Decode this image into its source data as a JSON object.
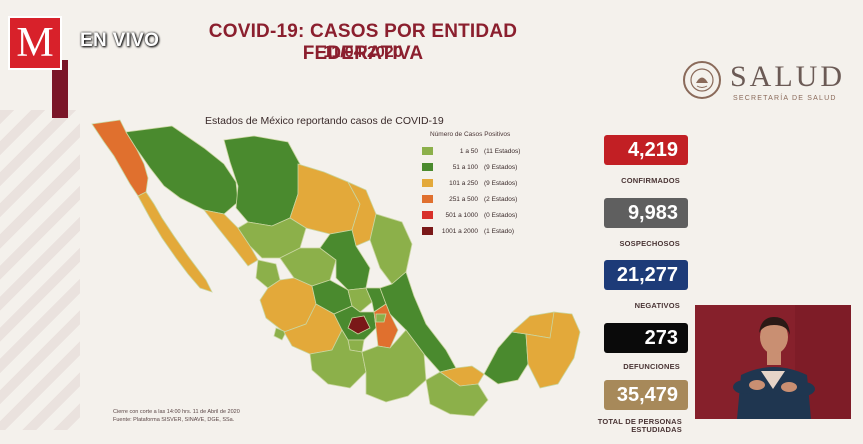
{
  "overlay": {
    "logo_letter": "M",
    "live_label": "EN VIVO"
  },
  "header": {
    "title": "COVID-19: CASOS POR ENTIDAD FEDERATIVA",
    "date": "11/04/2020"
  },
  "agency": {
    "name": "SALUD",
    "subtitle": "SECRETARÍA DE SALUD"
  },
  "map": {
    "title": "Estados de México reportando casos de COVID-19",
    "legend_title": "Número de Casos Positivos",
    "legend": [
      {
        "range": "1 a 50",
        "count": "(11 Estados)",
        "color": "#8cb04a"
      },
      {
        "range": "51 a 100",
        "count": "(9 Estados)",
        "color": "#4a8a2e"
      },
      {
        "range": "101 a 250",
        "count": "(9 Estados)",
        "color": "#e3a93a"
      },
      {
        "range": "251 a 500",
        "count": "(2 Estados)",
        "color": "#e0702e"
      },
      {
        "range": "501 a 1000",
        "count": "(0 Estados)",
        "color": "#d8302a"
      },
      {
        "range": "1001 a 2000",
        "count": "(1 Estado)",
        "color": "#7a1818"
      }
    ]
  },
  "stats": [
    {
      "value": "4,219",
      "label": "CONFIRMADOS",
      "color": "#c21f24"
    },
    {
      "value": "9,983",
      "label": "SOSPECHOSOS",
      "color": "#5f5f5f"
    },
    {
      "value": "21,277",
      "label": "NEGATIVOS",
      "color": "#1d3b78"
    },
    {
      "value": "273",
      "label": "DEFUNCIONES",
      "color": "#0a0a0a"
    },
    {
      "value": "35,479",
      "label": "TOTAL DE PERSONAS ESTUDIADAS",
      "color": "#a7895a"
    }
  ],
  "footnote": {
    "line1": "Cierre con corte a las 14:00 hrs. 11 de Abril de 2020",
    "line2": "Fuente: Plataforma SISVER, SINAVE, DGE, SSa."
  }
}
